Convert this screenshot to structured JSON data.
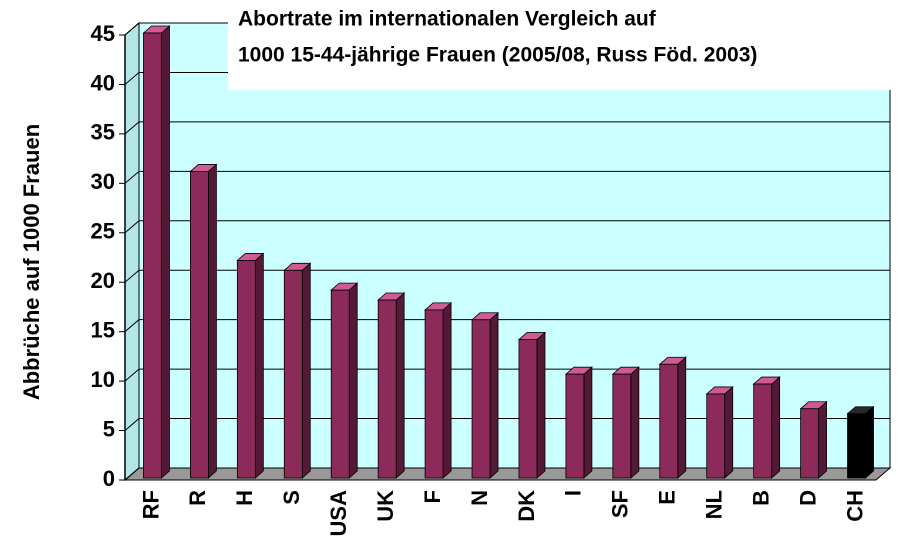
{
  "chart_data": {
    "type": "bar3d",
    "title": [
      "Abortrate im internationalen Vergleich auf",
      "1000 15-44-jährige Frauen (2005/08, Russ Föd. 2003)"
    ],
    "y_label": "Abbrüche auf 1000 Frauen",
    "categories": [
      "RF",
      "R",
      "H",
      "S",
      "USA",
      "UK",
      "F",
      "N",
      "DK",
      "I",
      "SF",
      "E",
      "NL",
      "B",
      "D",
      "CH"
    ],
    "values": [
      45,
      31,
      22,
      21,
      19,
      18,
      17,
      16,
      14,
      10.5,
      10.5,
      11.5,
      8.5,
      9.5,
      7,
      6.5
    ],
    "colors": [
      "#8c2a5a",
      "#8c2a5a",
      "#8c2a5a",
      "#8c2a5a",
      "#8c2a5a",
      "#8c2a5a",
      "#8c2a5a",
      "#8c2a5a",
      "#8c2a5a",
      "#8c2a5a",
      "#8c2a5a",
      "#8c2a5a",
      "#8c2a5a",
      "#8c2a5a",
      "#8c2a5a",
      "#000000"
    ],
    "ylim": [
      0,
      45
    ],
    "yticks": [
      0,
      5,
      10,
      15,
      20,
      25,
      30,
      35,
      40,
      45
    ],
    "grid": true
  }
}
